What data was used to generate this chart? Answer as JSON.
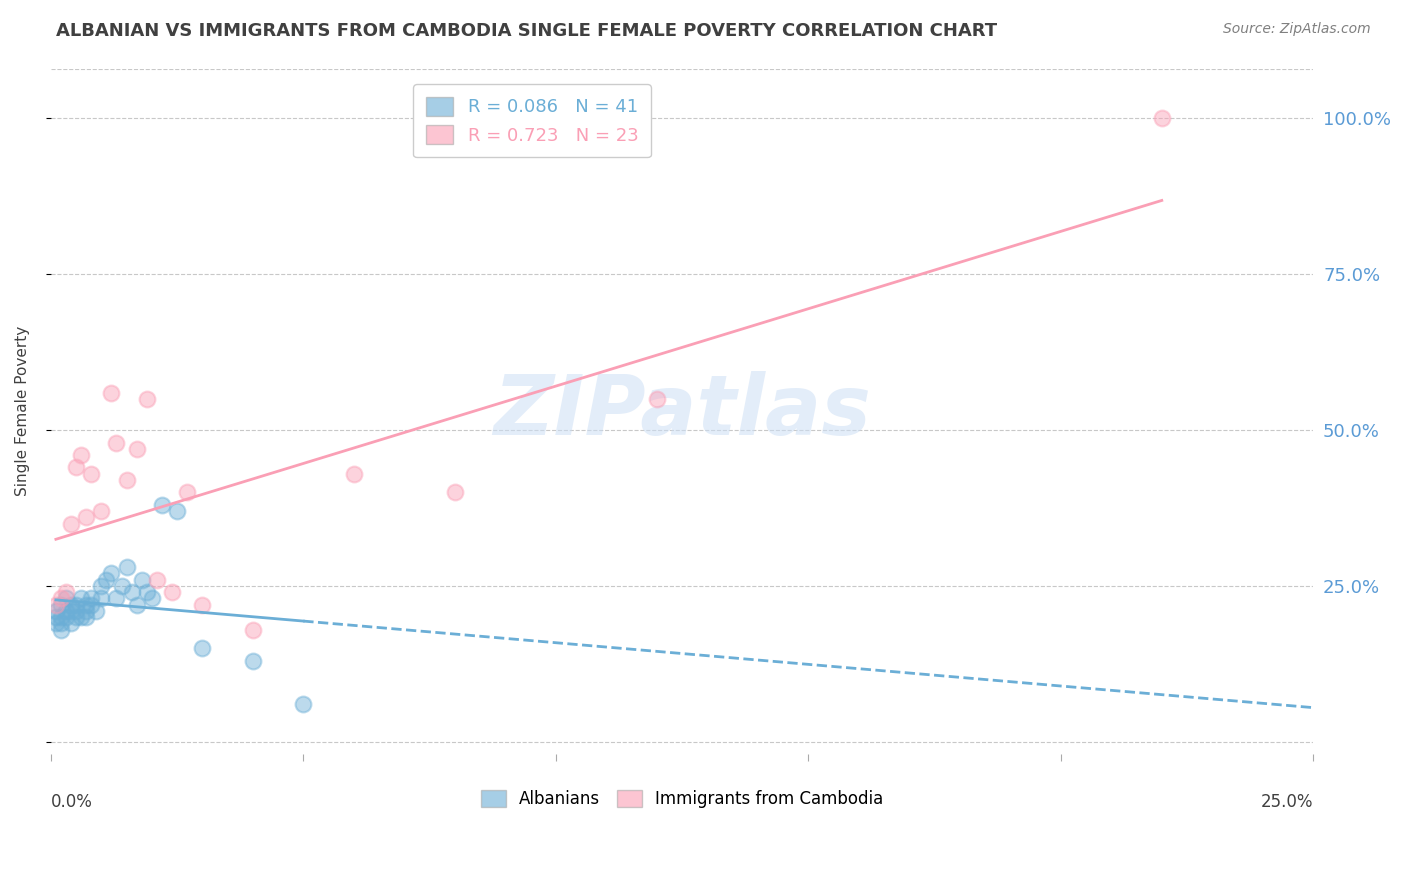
{
  "title": "ALBANIAN VS IMMIGRANTS FROM CAMBODIA SINGLE FEMALE POVERTY CORRELATION CHART",
  "source": "Source: ZipAtlas.com",
  "ylabel": "Single Female Poverty",
  "xlim": [
    0.0,
    0.25
  ],
  "ylim": [
    -0.02,
    1.08
  ],
  "watermark": "ZIPatlas",
  "alb_R": "0.086",
  "alb_N": "41",
  "cam_R": "0.723",
  "cam_N": "23",
  "albanians_x": [
    0.001,
    0.001,
    0.001,
    0.002,
    0.002,
    0.002,
    0.002,
    0.003,
    0.003,
    0.003,
    0.004,
    0.004,
    0.004,
    0.005,
    0.005,
    0.005,
    0.006,
    0.006,
    0.007,
    0.007,
    0.007,
    0.008,
    0.008,
    0.009,
    0.01,
    0.01,
    0.011,
    0.012,
    0.013,
    0.014,
    0.015,
    0.016,
    0.017,
    0.018,
    0.019,
    0.02,
    0.022,
    0.025,
    0.03,
    0.04,
    0.05
  ],
  "albanians_y": [
    0.21,
    0.2,
    0.19,
    0.22,
    0.2,
    0.19,
    0.18,
    0.23,
    0.21,
    0.2,
    0.22,
    0.21,
    0.19,
    0.22,
    0.2,
    0.21,
    0.23,
    0.2,
    0.22,
    0.21,
    0.2,
    0.23,
    0.22,
    0.21,
    0.25,
    0.23,
    0.26,
    0.27,
    0.23,
    0.25,
    0.28,
    0.24,
    0.22,
    0.26,
    0.24,
    0.23,
    0.38,
    0.37,
    0.15,
    0.13,
    0.06
  ],
  "cambodia_x": [
    0.001,
    0.002,
    0.003,
    0.004,
    0.005,
    0.006,
    0.007,
    0.008,
    0.01,
    0.012,
    0.013,
    0.015,
    0.017,
    0.019,
    0.021,
    0.024,
    0.027,
    0.03,
    0.04,
    0.06,
    0.08,
    0.12,
    0.22
  ],
  "cambodia_y": [
    0.22,
    0.23,
    0.24,
    0.35,
    0.44,
    0.46,
    0.36,
    0.43,
    0.37,
    0.56,
    0.48,
    0.42,
    0.47,
    0.55,
    0.26,
    0.24,
    0.4,
    0.22,
    0.18,
    0.43,
    0.4,
    0.55,
    1.0
  ],
  "albanian_color": "#6baed6",
  "cambodia_color": "#fa9fb5",
  "bg_color": "#ffffff",
  "grid_color": "#c8c8c8",
  "right_axis_color": "#5b9bd5",
  "title_color": "#404040",
  "source_color": "#808080",
  "ylabel_color": "#404040"
}
